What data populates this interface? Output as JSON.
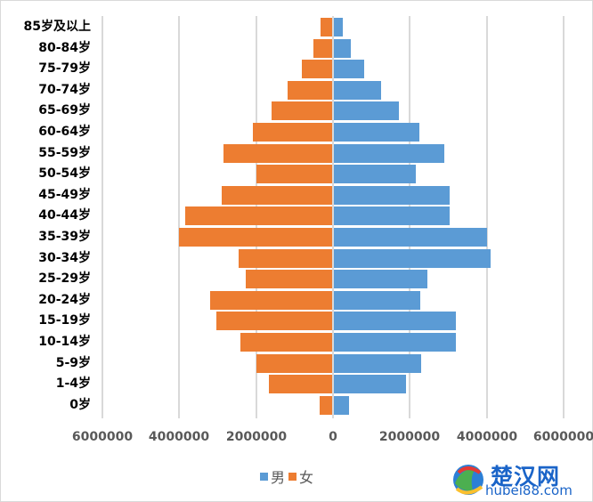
{
  "chart_data": {
    "type": "bar",
    "orientation": "horizontal",
    "subtype": "population-pyramid",
    "title": "",
    "xlabel": "",
    "ylabel": "",
    "categories": [
      "85岁及以上",
      "80-84岁",
      "75-79岁",
      "70-74岁",
      "65-69岁",
      "60-64岁",
      "55-59岁",
      "50-54岁",
      "45-49岁",
      "40-44岁",
      "35-39岁",
      "30-34岁",
      "25-29岁",
      "20-24岁",
      "15-19岁",
      "10-14岁",
      "5-9岁",
      "1-4岁",
      "0岁"
    ],
    "series": [
      {
        "name": "男",
        "color": "#5b9bd5",
        "values": [
          230000,
          440000,
          790000,
          1230000,
          1690000,
          2220000,
          2870000,
          2130000,
          3000000,
          3000000,
          3980000,
          4070000,
          2430000,
          2240000,
          3170000,
          3170000,
          2270000,
          1870000,
          390000
        ]
      },
      {
        "name": "女",
        "color": "#ed7d31",
        "values": [
          320000,
          500000,
          800000,
          1180000,
          1600000,
          2080000,
          2840000,
          2000000,
          2900000,
          3840000,
          4000000,
          2450000,
          2270000,
          3190000,
          3030000,
          2400000,
          2000000,
          1660000,
          350000
        ]
      }
    ],
    "x_ticks": [
      "6000000",
      "4000000",
      "2000000",
      "0",
      "2000000",
      "4000000",
      "6000000"
    ],
    "xlim": [
      -6000000,
      6000000
    ],
    "grid": true,
    "legend_position": "bottom"
  },
  "legend": {
    "male": "男",
    "female": "女"
  },
  "watermark": {
    "name": "楚汉网",
    "url": "hubei88.com"
  }
}
